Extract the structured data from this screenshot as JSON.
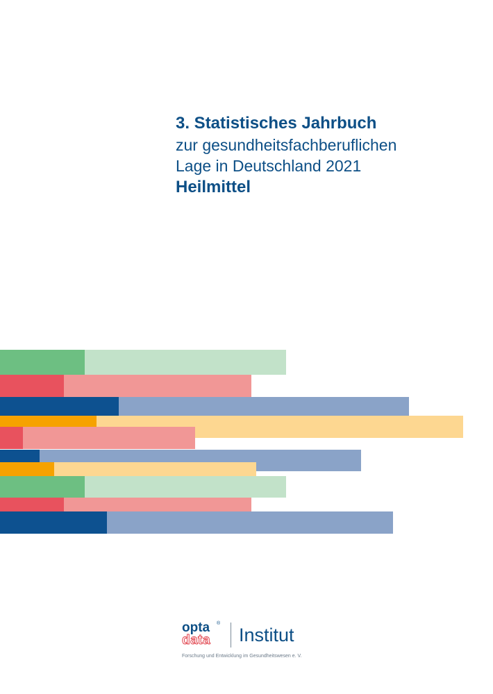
{
  "cover": {
    "line1": "3. Statistisches Jahrbuch",
    "line2": "zur gesundheitsfachberuflichen",
    "line3": "Lage in Deutschland 2021",
    "line4": "Heilmittel"
  },
  "colors": {
    "title_blue": "#0d4f86",
    "green_dark": "#6dbf82",
    "green_light": "#c2e2c9",
    "red_dark": "#e8525e",
    "red_light": "#f19796",
    "blue_dark": "#0d5190",
    "blue_light": "#8aa3c8",
    "orange_dark": "#f6a200",
    "orange_light": "#fdd791"
  },
  "bars": [
    {
      "color": "green"
    },
    {
      "color": "red"
    },
    {
      "color": "blue"
    },
    {
      "color": "orange"
    },
    {
      "color": "red"
    },
    {
      "color": "blue"
    },
    {
      "color": "orange"
    },
    {
      "color": "green"
    },
    {
      "color": "red"
    },
    {
      "color": "blue"
    }
  ],
  "logo": {
    "opta": "opta",
    "registered": "®",
    "data": "data",
    "institut": "Institut",
    "tagline": "Forschung und Entwicklung im Gesundheitswesen e. V."
  }
}
